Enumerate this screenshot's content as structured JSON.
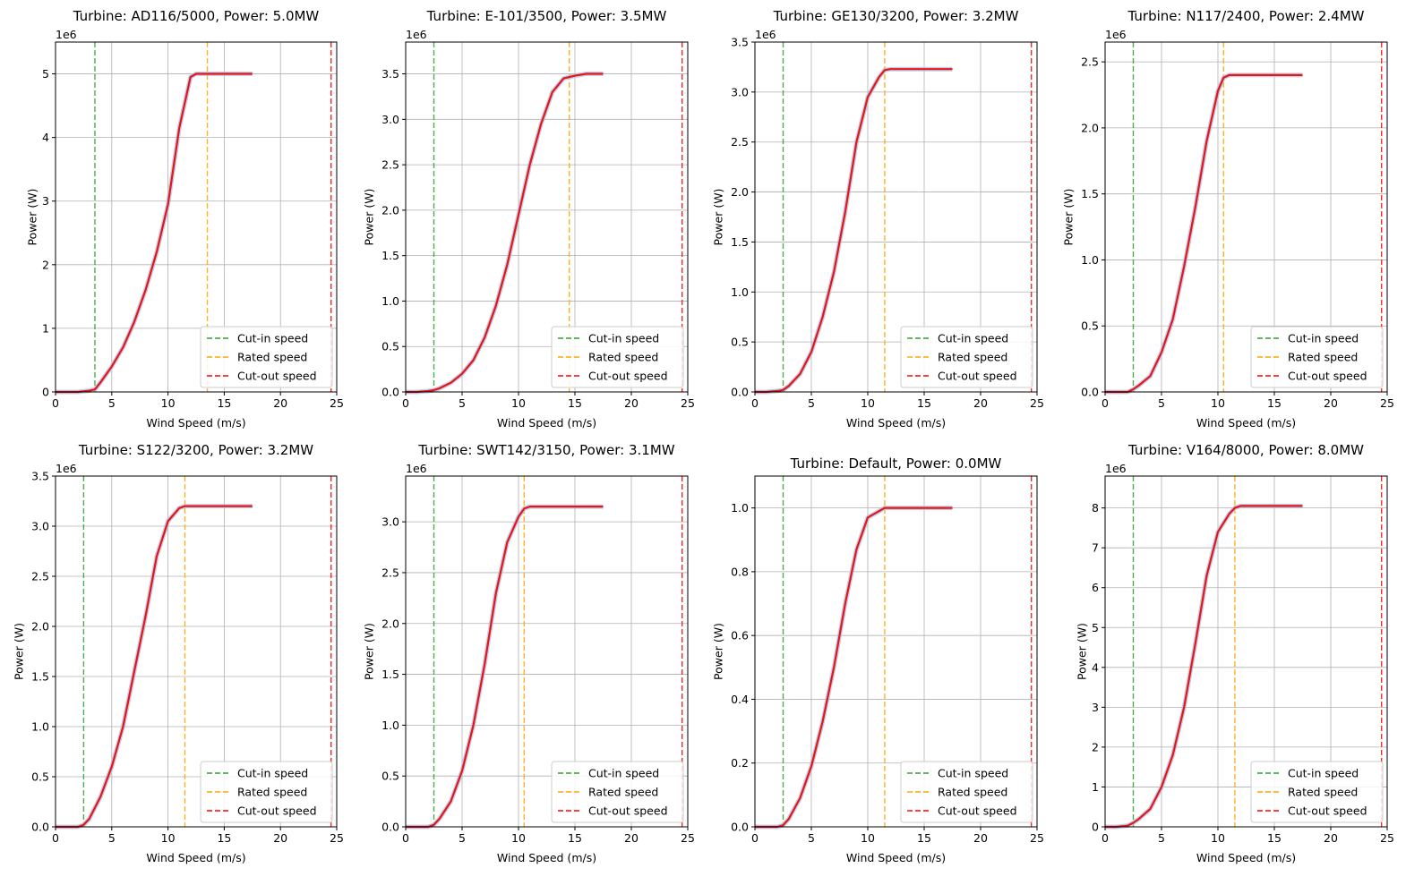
{
  "figure": {
    "xlabel": "Wind Speed (m/s)",
    "ylabel": "Power (W)",
    "legend": [
      "Cut-in speed",
      "Rated speed",
      "Cut-out speed"
    ],
    "colors": {
      "cut_in": "#2ca02c",
      "rated": "#ffa500",
      "cut_out": "#ff0000",
      "curve": "#e8141a",
      "curve_shadow": "#b0c4de",
      "grid": "#b0b0b0"
    }
  },
  "chart_data": [
    {
      "type": "line",
      "title": "Turbine: AD116/5000, Power: 5.0MW",
      "xlabel": "Wind Speed (m/s)",
      "ylabel": "Power (W)",
      "xlim": [
        0,
        25
      ],
      "ylim": [
        0,
        5.5
      ],
      "xticks": [
        0,
        5,
        10,
        15,
        20,
        25
      ],
      "xtick_labels": [
        "0",
        "5",
        "10",
        "15",
        "20",
        "25"
      ],
      "yticks": [
        0,
        1,
        2,
        3,
        4,
        5
      ],
      "ytick_labels": [
        "0",
        "1",
        "2",
        "3",
        "4",
        "5"
      ],
      "y_multiplier": "1e6",
      "cut_in": 3.5,
      "rated": 13.5,
      "cut_out": 24.5,
      "grid": true,
      "legend_position": "lower right",
      "x": [
        0,
        1,
        2,
        3,
        3.5,
        4,
        5,
        6,
        7,
        8,
        9,
        10,
        11,
        12,
        12.5,
        13.5,
        14.5,
        15.5,
        16.5,
        17.5
      ],
      "y": [
        0,
        0,
        0,
        0.02,
        0.04,
        0.15,
        0.4,
        0.7,
        1.1,
        1.6,
        2.2,
        2.95,
        4.15,
        4.95,
        5.0,
        5.0,
        5.0,
        5.0,
        5.0,
        5.0
      ]
    },
    {
      "type": "line",
      "title": "Turbine: E-101/3500, Power: 3.5MW",
      "xlabel": "Wind Speed (m/s)",
      "ylabel": "Power (W)",
      "xlim": [
        0,
        25
      ],
      "ylim": [
        0,
        3.85
      ],
      "xticks": [
        0,
        5,
        10,
        15,
        20,
        25
      ],
      "xtick_labels": [
        "0",
        "5",
        "10",
        "15",
        "20",
        "25"
      ],
      "yticks": [
        0,
        0.5,
        1,
        1.5,
        2,
        2.5,
        3,
        3.5
      ],
      "ytick_labels": [
        "0.0",
        "0.5",
        "1.0",
        "1.5",
        "2.0",
        "2.5",
        "3.0",
        "3.5"
      ],
      "y_multiplier": "1e6",
      "cut_in": 2.5,
      "rated": 14.5,
      "cut_out": 24.5,
      "grid": true,
      "legend_position": "lower right",
      "x": [
        0,
        1,
        2,
        2.5,
        3,
        4,
        5,
        6,
        7,
        8,
        9,
        10,
        11,
        12,
        13,
        14,
        15,
        16,
        17.5
      ],
      "y": [
        0,
        0,
        0.01,
        0.02,
        0.04,
        0.1,
        0.2,
        0.35,
        0.6,
        0.95,
        1.4,
        1.95,
        2.5,
        2.95,
        3.3,
        3.45,
        3.48,
        3.5,
        3.5
      ]
    },
    {
      "type": "line",
      "title": "Turbine: GE130/3200, Power: 3.2MW",
      "xlabel": "Wind Speed (m/s)",
      "ylabel": "Power (W)",
      "xlim": [
        0,
        25
      ],
      "ylim": [
        0,
        3.5
      ],
      "xticks": [
        0,
        5,
        10,
        15,
        20,
        25
      ],
      "xtick_labels": [
        "0",
        "5",
        "10",
        "15",
        "20",
        "25"
      ],
      "yticks": [
        0,
        0.5,
        1,
        1.5,
        2,
        2.5,
        3,
        3.5
      ],
      "ytick_labels": [
        "0.0",
        "0.5",
        "1.0",
        "1.5",
        "2.0",
        "2.5",
        "3.0",
        "3.5"
      ],
      "y_multiplier": "1e6",
      "cut_in": 2.5,
      "rated": 11.5,
      "cut_out": 24.5,
      "grid": true,
      "legend_position": "lower right",
      "x": [
        0,
        1,
        2,
        2.5,
        3,
        4,
        5,
        6,
        7,
        8,
        9,
        10,
        11,
        11.5,
        12,
        13,
        14,
        15,
        16,
        17.5
      ],
      "y": [
        0,
        0,
        0.01,
        0.02,
        0.06,
        0.18,
        0.4,
        0.75,
        1.2,
        1.8,
        2.5,
        2.95,
        3.15,
        3.22,
        3.23,
        3.23,
        3.23,
        3.23,
        3.23,
        3.23
      ]
    },
    {
      "type": "line",
      "title": "Turbine: N117/2400, Power: 2.4MW",
      "xlabel": "Wind Speed (m/s)",
      "ylabel": "Power (W)",
      "xlim": [
        0,
        25
      ],
      "ylim": [
        0,
        2.65
      ],
      "xticks": [
        0,
        5,
        10,
        15,
        20,
        25
      ],
      "xtick_labels": [
        "0",
        "5",
        "10",
        "15",
        "20",
        "25"
      ],
      "yticks": [
        0,
        0.5,
        1,
        1.5,
        2,
        2.5
      ],
      "ytick_labels": [
        "0.0",
        "0.5",
        "1.0",
        "1.5",
        "2.0",
        "2.5"
      ],
      "y_multiplier": "1e6",
      "cut_in": 2.5,
      "rated": 10.5,
      "cut_out": 24.5,
      "grid": true,
      "legend_position": "lower right",
      "x": [
        0,
        1,
        2,
        2.5,
        3,
        4,
        5,
        6,
        7,
        8,
        9,
        10,
        10.5,
        11,
        12,
        13,
        14,
        15,
        16,
        17.5
      ],
      "y": [
        0,
        0,
        0,
        0.02,
        0.05,
        0.12,
        0.3,
        0.55,
        0.95,
        1.4,
        1.9,
        2.28,
        2.38,
        2.4,
        2.4,
        2.4,
        2.4,
        2.4,
        2.4,
        2.4
      ]
    },
    {
      "type": "line",
      "title": "Turbine: S122/3200, Power: 3.2MW",
      "xlabel": "Wind Speed (m/s)",
      "ylabel": "Power (W)",
      "xlim": [
        0,
        25
      ],
      "ylim": [
        0,
        3.5
      ],
      "xticks": [
        0,
        5,
        10,
        15,
        20,
        25
      ],
      "xtick_labels": [
        "0",
        "5",
        "10",
        "15",
        "20",
        "25"
      ],
      "yticks": [
        0,
        0.5,
        1,
        1.5,
        2,
        2.5,
        3,
        3.5
      ],
      "ytick_labels": [
        "0.0",
        "0.5",
        "1.0",
        "1.5",
        "2.0",
        "2.5",
        "3.0",
        "3.5"
      ],
      "y_multiplier": "1e6",
      "cut_in": 2.5,
      "rated": 11.5,
      "cut_out": 24.5,
      "grid": true,
      "legend_position": "lower right",
      "x": [
        0,
        1,
        2,
        2.5,
        3,
        4,
        5,
        6,
        7,
        8,
        9,
        10,
        11,
        11.5,
        12,
        13,
        14,
        15,
        16,
        17.5
      ],
      "y": [
        0,
        0,
        0,
        0.02,
        0.08,
        0.3,
        0.6,
        1.0,
        1.55,
        2.1,
        2.7,
        3.05,
        3.18,
        3.2,
        3.2,
        3.2,
        3.2,
        3.2,
        3.2,
        3.2
      ]
    },
    {
      "type": "line",
      "title": "Turbine: SWT142/3150, Power: 3.1MW",
      "xlabel": "Wind Speed (m/s)",
      "ylabel": "Power (W)",
      "xlim": [
        0,
        25
      ],
      "ylim": [
        0,
        3.45
      ],
      "xticks": [
        0,
        5,
        10,
        15,
        20,
        25
      ],
      "xtick_labels": [
        "0",
        "5",
        "10",
        "15",
        "20",
        "25"
      ],
      "yticks": [
        0,
        0.5,
        1,
        1.5,
        2,
        2.5,
        3
      ],
      "ytick_labels": [
        "0.0",
        "0.5",
        "1.0",
        "1.5",
        "2.0",
        "2.5",
        "3.0"
      ],
      "y_multiplier": "1e6",
      "cut_in": 2.5,
      "rated": 10.5,
      "cut_out": 24.5,
      "grid": true,
      "legend_position": "lower right",
      "x": [
        0,
        1,
        2,
        2.5,
        3,
        4,
        5,
        6,
        7,
        8,
        9,
        10,
        10.5,
        11,
        12,
        13,
        14,
        15,
        16,
        17.5
      ],
      "y": [
        0,
        0,
        0,
        0.02,
        0.08,
        0.25,
        0.55,
        1.0,
        1.6,
        2.3,
        2.8,
        3.05,
        3.13,
        3.15,
        3.15,
        3.15,
        3.15,
        3.15,
        3.15,
        3.15
      ]
    },
    {
      "type": "line",
      "title": "Turbine: Default, Power: 0.0MW",
      "xlabel": "Wind Speed (m/s)",
      "ylabel": "Power (W)",
      "xlim": [
        0,
        25
      ],
      "ylim": [
        0,
        1.1
      ],
      "xticks": [
        0,
        5,
        10,
        15,
        20,
        25
      ],
      "xtick_labels": [
        "0",
        "5",
        "10",
        "15",
        "20",
        "25"
      ],
      "yticks": [
        0,
        0.2,
        0.4,
        0.6,
        0.8,
        1.0
      ],
      "ytick_labels": [
        "0.0",
        "0.2",
        "0.4",
        "0.6",
        "0.8",
        "1.0"
      ],
      "y_multiplier": "",
      "cut_in": 2.5,
      "rated": 11.5,
      "cut_out": 24.5,
      "grid": true,
      "legend_position": "lower right",
      "x": [
        0,
        1,
        2,
        2.5,
        3,
        4,
        5,
        6,
        7,
        8,
        9,
        10,
        11,
        11.5,
        12,
        13,
        14,
        15,
        16,
        17.5
      ],
      "y": [
        0,
        0,
        0,
        0.005,
        0.025,
        0.09,
        0.19,
        0.33,
        0.5,
        0.7,
        0.87,
        0.97,
        0.99,
        1.0,
        1.0,
        1.0,
        1.0,
        1.0,
        1.0,
        1.0
      ]
    },
    {
      "type": "line",
      "title": "Turbine: V164/8000, Power: 8.0MW",
      "xlabel": "Wind Speed (m/s)",
      "ylabel": "Power (W)",
      "xlim": [
        0,
        25
      ],
      "ylim": [
        0,
        8.8
      ],
      "xticks": [
        0,
        5,
        10,
        15,
        20,
        25
      ],
      "xtick_labels": [
        "0",
        "5",
        "10",
        "15",
        "20",
        "25"
      ],
      "yticks": [
        0,
        1,
        2,
        3,
        4,
        5,
        6,
        7,
        8
      ],
      "ytick_labels": [
        "0",
        "1",
        "2",
        "3",
        "4",
        "5",
        "6",
        "7",
        "8"
      ],
      "y_multiplier": "1e6",
      "cut_in": 2.5,
      "rated": 11.5,
      "cut_out": 24.5,
      "grid": true,
      "legend_position": "lower right",
      "x": [
        0,
        1,
        2,
        2.5,
        3,
        4,
        5,
        6,
        7,
        8,
        9,
        10,
        11,
        11.5,
        12,
        13,
        14,
        15,
        16,
        17.5
      ],
      "y": [
        0,
        0,
        0.03,
        0.1,
        0.2,
        0.45,
        1.0,
        1.8,
        3.0,
        4.6,
        6.3,
        7.4,
        7.85,
        8.0,
        8.05,
        8.05,
        8.05,
        8.05,
        8.05,
        8.05
      ]
    }
  ]
}
